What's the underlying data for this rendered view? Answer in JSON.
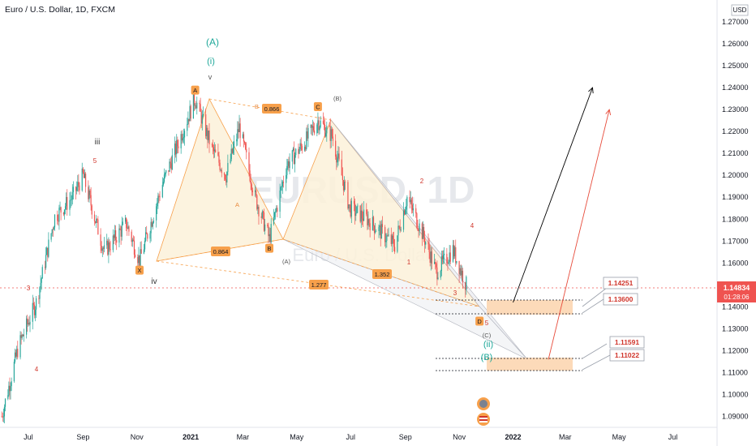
{
  "header": {
    "title": "Euro / U.S. Dollar, 1D, FXCM"
  },
  "watermark": {
    "symbol": "EURUSD, 1D",
    "name": "Euro / U.S. Dollar"
  },
  "chart_data": {
    "type": "candlestick",
    "title": "Euro / U.S. Dollar, 1D, FXCM",
    "currency": "USD",
    "ylim": [
      1.085,
      1.28
    ],
    "y_ticks": [
      "1.27000",
      "1.26000",
      "1.25000",
      "1.24000",
      "1.23000",
      "1.22000",
      "1.21000",
      "1.20000",
      "1.19000",
      "1.18000",
      "1.17000",
      "1.16000",
      "1.14000",
      "1.13000",
      "1.12000",
      "1.11000",
      "1.10000",
      "1.09000"
    ],
    "x_ticks": [
      "Jul",
      "Sep",
      "Nov",
      "2021",
      "Mar",
      "May",
      "Jul",
      "Sep",
      "Nov",
      "2022",
      "Mar",
      "May",
      "Jul"
    ],
    "x_range": [
      "2020-05-30",
      "2022-08-20"
    ],
    "series": [
      {
        "name": "EURUSD",
        "x": [
          "2020-06-01",
          "2020-06-20",
          "2020-07-10",
          "2020-07-31",
          "2020-08-20",
          "2020-09-01",
          "2020-09-25",
          "2020-10-20",
          "2020-11-04",
          "2020-11-30",
          "2021-01-06",
          "2021-01-25",
          "2021-02-10",
          "2021-02-25",
          "2021-03-15",
          "2021-03-31",
          "2021-04-20",
          "2021-05-10",
          "2021-05-25",
          "2021-06-10",
          "2021-06-30",
          "2021-07-20",
          "2021-08-10",
          "2021-08-20",
          "2021-09-03",
          "2021-09-22",
          "2021-10-06",
          "2021-10-25",
          "2021-11-09"
        ],
        "values": [
          1.09,
          1.122,
          1.142,
          1.181,
          1.19,
          1.2,
          1.165,
          1.178,
          1.161,
          1.196,
          1.235,
          1.212,
          1.2,
          1.222,
          1.19,
          1.171,
          1.205,
          1.215,
          1.225,
          1.218,
          1.185,
          1.18,
          1.172,
          1.168,
          1.19,
          1.172,
          1.156,
          1.166,
          1.15
        ]
      }
    ],
    "current_price": {
      "value": "1.14834",
      "countdown": "01:28:06"
    },
    "price_labels": [
      "1.14251",
      "1.13600",
      "1.11591",
      "1.11022"
    ],
    "targets": [
      {
        "label": "1.14251",
        "value": 1.14251
      },
      {
        "label": "1.13600",
        "value": 1.136
      },
      {
        "label": "1.11591",
        "value": 1.11591
      },
      {
        "label": "1.11022",
        "value": 1.11022
      }
    ],
    "harmonic_points": [
      {
        "label": "X",
        "x": "2020-11-04",
        "y": 1.161
      },
      {
        "label": "A",
        "x": "2021-01-06",
        "y": 1.235
      },
      {
        "label": "B",
        "x": "2021-03-31",
        "y": 1.171
      },
      {
        "label": "C",
        "x": "2021-05-25",
        "y": 1.226
      },
      {
        "label": "D",
        "x": "2021-11-24",
        "y": 1.137
      }
    ],
    "ratios": [
      "0.866",
      "0.864",
      "1.277",
      "1.352"
    ],
    "wave_labels": [
      "(A)",
      "(i)",
      "v",
      "(B)",
      "iii",
      "iv",
      "(A)",
      "(C)",
      "(ii)",
      "(B)",
      "1",
      "2",
      "3",
      "4",
      "5",
      "3",
      "4",
      "5"
    ],
    "projection_lines": [
      {
        "color": "#000000",
        "from": {
          "x": "2022-01-01",
          "y": 1.142
        },
        "to": {
          "x": "2022-04-01",
          "y": 1.24
        }
      },
      {
        "color": "#e74c3c",
        "from": {
          "x": "2022-02-10",
          "y": 1.116
        },
        "to": {
          "x": "2022-04-20",
          "y": 1.23
        }
      }
    ]
  },
  "colors": {
    "up": "#26a69a",
    "down": "#ef5350",
    "accent": "#f7a04b",
    "pattern_fill": "#fbf1d9",
    "target_box": "#fcd3ad",
    "price_line": "#ef5350",
    "wave_teal": "#1fa89a"
  }
}
